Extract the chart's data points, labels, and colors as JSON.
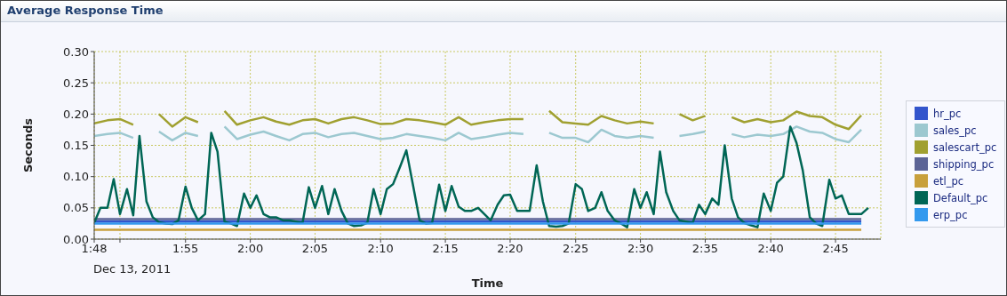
{
  "chart_data": {
    "type": "line",
    "title": "Average Response Time",
    "xlabel": "Time",
    "ylabel": "Seconds",
    "annotations": [
      "Dec 13, 2011"
    ],
    "x": [
      1.8,
      1.817,
      1.833,
      1.85,
      1.867,
      1.883,
      1.9,
      1.917,
      1.933,
      1.95,
      1.967,
      1.983,
      2,
      2.017,
      2.033,
      2.05,
      2.067,
      2.083,
      2.1,
      2.117,
      2.133,
      2.15,
      2.167,
      2.183,
      2.2,
      2.217,
      2.233,
      2.25,
      2.267,
      2.283,
      2.3,
      2.317,
      2.333,
      2.35,
      2.367,
      2.383,
      2.4,
      2.417,
      2.433,
      2.45,
      2.467,
      2.483,
      2.5,
      2.517,
      2.533,
      2.55,
      2.567,
      2.583,
      2.6,
      2.617,
      2.633,
      2.65,
      2.667,
      2.683,
      2.7,
      2.717,
      2.733,
      2.75,
      2.767,
      2.783
    ],
    "series": [
      {
        "name": "hr_pc",
        "color": "#3355cc",
        "values": [
          0.028,
          0.028,
          0.028,
          0.028,
          0.028,
          0.028,
          0.028,
          0.028,
          0.028,
          0.028,
          0.028,
          0.028,
          0.028,
          0.028,
          0.028,
          0.028,
          0.028,
          0.028,
          0.028,
          0.028,
          0.028,
          0.028,
          0.028,
          0.028,
          0.028,
          0.028,
          0.028,
          0.028,
          0.028,
          0.028,
          0.028,
          0.028,
          0.028,
          0.028,
          0.028,
          0.028,
          0.028,
          0.028,
          0.028,
          0.028,
          0.028,
          0.028,
          0.028,
          0.028,
          0.028,
          0.028,
          0.028,
          0.028,
          0.028,
          0.028,
          0.028,
          0.028,
          0.028,
          0.028,
          0.028,
          0.028,
          0.028,
          0.028,
          0.028,
          0.028
        ]
      },
      {
        "name": "sales_pc",
        "color": "#9cc8d0",
        "values": [
          0.165,
          0.168,
          0.17,
          0.162,
          null,
          0.172,
          0.158,
          0.17,
          0.165,
          null,
          0.18,
          0.16,
          0.167,
          0.172,
          0.165,
          0.158,
          0.168,
          0.17,
          0.163,
          0.168,
          0.17,
          0.165,
          0.16,
          0.162,
          0.168,
          0.165,
          0.162,
          0.158,
          0.17,
          0.16,
          0.163,
          0.167,
          0.17,
          0.168,
          null,
          0.17,
          0.162,
          0.162,
          0.155,
          0.175,
          0.165,
          0.162,
          0.165,
          0.162,
          null,
          0.165,
          0.168,
          0.172,
          null,
          0.168,
          0.163,
          0.167,
          0.165,
          0.168,
          0.18,
          0.172,
          0.17,
          0.16,
          0.155,
          0.175
        ]
      },
      {
        "name": "salescart_pc",
        "color": "#a0a030",
        "values": [
          0.185,
          0.19,
          0.192,
          0.183,
          null,
          0.2,
          0.18,
          0.195,
          0.187,
          null,
          0.205,
          0.183,
          0.19,
          0.195,
          0.188,
          0.183,
          0.19,
          0.192,
          0.185,
          0.192,
          0.195,
          0.19,
          0.184,
          0.185,
          0.192,
          0.19,
          0.187,
          0.183,
          0.195,
          0.183,
          0.187,
          0.19,
          0.192,
          0.192,
          null,
          0.205,
          0.187,
          0.185,
          0.183,
          0.197,
          0.19,
          0.185,
          0.188,
          0.185,
          null,
          0.2,
          0.19,
          0.197,
          null,
          0.195,
          0.187,
          0.192,
          0.187,
          0.19,
          0.204,
          0.197,
          0.195,
          0.183,
          0.176,
          0.198
        ]
      },
      {
        "name": "shipping_pc",
        "color": "#5c6496",
        "values": [
          0.032,
          0.032,
          0.032,
          0.032,
          0.032,
          0.032,
          0.032,
          0.032,
          0.032,
          0.032,
          0.032,
          0.032,
          0.032,
          0.032,
          0.032,
          0.032,
          0.032,
          0.032,
          0.032,
          0.032,
          0.032,
          0.032,
          0.032,
          0.032,
          0.032,
          0.032,
          0.032,
          0.032,
          0.032,
          0.032,
          0.032,
          0.032,
          0.032,
          0.032,
          0.032,
          0.032,
          0.032,
          0.032,
          0.032,
          0.032,
          0.032,
          0.032,
          0.032,
          0.032,
          0.032,
          0.032,
          0.032,
          0.032,
          0.032,
          0.032,
          0.032,
          0.032,
          0.032,
          0.032,
          0.032,
          0.032,
          0.032,
          0.032,
          0.032,
          0.032
        ]
      },
      {
        "name": "etl_pc",
        "color": "#c8a03c",
        "values": [
          0.015,
          0.015,
          0.015,
          0.015,
          0.015,
          0.015,
          0.015,
          0.015,
          0.015,
          0.015,
          0.015,
          0.015,
          0.015,
          0.015,
          0.015,
          0.015,
          0.015,
          0.015,
          0.015,
          0.015,
          0.015,
          0.015,
          0.015,
          0.015,
          0.015,
          0.015,
          0.015,
          0.015,
          0.015,
          0.015,
          0.015,
          0.015,
          0.015,
          0.015,
          0.015,
          0.015,
          0.015,
          0.015,
          0.015,
          0.015,
          0.015,
          0.015,
          0.015,
          0.015,
          0.015,
          0.015,
          0.015,
          0.015,
          0.015,
          0.015,
          0.015,
          0.015,
          0.015,
          0.015,
          0.015,
          0.015,
          0.015,
          0.015,
          0.015,
          0.015
        ]
      },
      {
        "name": "Default_pc",
        "color": "#006655",
        "x": [
          1.8,
          1.808,
          1.817,
          1.825,
          1.833,
          1.842,
          1.85,
          1.858,
          1.867,
          1.875,
          1.883,
          1.892,
          1.9,
          1.908,
          1.917,
          1.925,
          1.933,
          1.942,
          1.95,
          1.958,
          1.967,
          1.975,
          1.983,
          1.992,
          2,
          2.008,
          2.017,
          2.025,
          2.033,
          2.042,
          2.05,
          2.058,
          2.067,
          2.075,
          2.083,
          2.092,
          2.1,
          2.108,
          2.117,
          2.125,
          2.133,
          2.142,
          2.15,
          2.158,
          2.167,
          2.175,
          2.183,
          2.192,
          2.2,
          2.208,
          2.217,
          2.225,
          2.233,
          2.242,
          2.25,
          2.258,
          2.267,
          2.275,
          2.283,
          2.292,
          2.3,
          2.308,
          2.317,
          2.325,
          2.333,
          2.342,
          2.35,
          2.358,
          2.367,
          2.375,
          2.383,
          2.392,
          2.4,
          2.408,
          2.417,
          2.425,
          2.433,
          2.442,
          2.45,
          2.458,
          2.467,
          2.475,
          2.483,
          2.492,
          2.5,
          2.508,
          2.517,
          2.525,
          2.533,
          2.542,
          2.55,
          2.558,
          2.567,
          2.575,
          2.583,
          2.592,
          2.6,
          2.608,
          2.617,
          2.625,
          2.633,
          2.642,
          2.65,
          2.658,
          2.667,
          2.675,
          2.683,
          2.692,
          2.7,
          2.708,
          2.717,
          2.725,
          2.733,
          2.742,
          2.75,
          2.758,
          2.767,
          2.775,
          2.783,
          2.792
        ],
        "values": [
          0.026,
          0.05,
          0.05,
          0.096,
          0.04,
          0.08,
          0.038,
          0.165,
          0.06,
          0.035,
          0.027,
          0.025,
          0.024,
          0.03,
          0.084,
          0.05,
          0.03,
          0.04,
          0.17,
          0.14,
          0.028,
          0.025,
          0.021,
          0.073,
          0.05,
          0.07,
          0.04,
          0.035,
          0.035,
          0.03,
          0.03,
          0.028,
          0.026,
          0.083,
          0.05,
          0.085,
          0.04,
          0.08,
          0.045,
          0.025,
          0.021,
          0.022,
          0.026,
          0.08,
          0.04,
          0.08,
          0.088,
          0.116,
          0.142,
          0.09,
          0.03,
          0.025,
          0.026,
          0.087,
          0.045,
          0.085,
          0.052,
          0.045,
          0.045,
          0.05,
          0.04,
          0.03,
          0.055,
          0.07,
          0.071,
          0.045,
          0.045,
          0.045,
          0.118,
          0.06,
          0.021,
          0.02,
          0.021,
          0.025,
          0.088,
          0.08,
          0.045,
          0.05,
          0.075,
          0.045,
          0.03,
          0.025,
          0.019,
          0.08,
          0.05,
          0.075,
          0.04,
          0.14,
          0.075,
          0.045,
          0.03,
          0.028,
          0.026,
          0.055,
          0.04,
          0.065,
          0.055,
          0.15,
          0.065,
          0.035,
          0.026,
          0.022,
          0.019,
          0.073,
          0.045,
          0.09,
          0.1,
          0.18,
          0.154,
          0.11,
          0.035,
          0.025,
          0.021,
          0.095,
          0.065,
          0.07,
          0.04,
          0.04,
          0.04,
          0.05
        ]
      },
      {
        "name": "erp_pc",
        "color": "#3399ee",
        "values": [
          0.025,
          0.025,
          0.025,
          0.025,
          0.025,
          0.025,
          0.025,
          0.025,
          0.025,
          0.025,
          0.025,
          0.025,
          0.025,
          0.025,
          0.025,
          0.025,
          0.025,
          0.025,
          0.025,
          0.025,
          0.025,
          0.025,
          0.025,
          0.025,
          0.025,
          0.025,
          0.025,
          0.025,
          0.025,
          0.025,
          0.025,
          0.025,
          0.025,
          0.025,
          0.025,
          0.025,
          0.025,
          0.025,
          0.025,
          0.025,
          0.025,
          0.025,
          0.025,
          0.025,
          0.025,
          0.025,
          0.025,
          0.025,
          0.025,
          0.025,
          0.025,
          0.025,
          0.025,
          0.025,
          0.025,
          0.025,
          0.025,
          0.025,
          0.025,
          0.025
        ]
      }
    ],
    "xlim": [
      1.8,
      2.808
    ],
    "xticks": [
      {
        "value": 1.8,
        "label": "1:48"
      },
      {
        "value": 1.833,
        "label": null
      },
      {
        "value": 1.917,
        "label": "1:55"
      },
      {
        "value": 2,
        "label": "2:00"
      },
      {
        "value": 2.083,
        "label": "2:05"
      },
      {
        "value": 2.167,
        "label": "2:10"
      },
      {
        "value": 2.25,
        "label": "2:15"
      },
      {
        "value": 2.333,
        "label": "2:20"
      },
      {
        "value": 2.417,
        "label": "2:25"
      },
      {
        "value": 2.5,
        "label": "2:30"
      },
      {
        "value": 2.583,
        "label": "2:35"
      },
      {
        "value": 2.667,
        "label": "2:40"
      },
      {
        "value": 2.75,
        "label": "2:45"
      }
    ],
    "ylim": [
      0,
      0.3
    ],
    "yticks": [
      {
        "value": 0,
        "label": "0.00"
      },
      {
        "value": 0.05,
        "label": "0.05"
      },
      {
        "value": 0.1,
        "label": "0.10"
      },
      {
        "value": 0.15,
        "label": "0.15"
      },
      {
        "value": 0.2,
        "label": "0.20"
      },
      {
        "value": 0.25,
        "label": "0.25"
      },
      {
        "value": 0.3,
        "label": "0.30"
      }
    ],
    "grid": true,
    "legend": "right",
    "marker": "none"
  }
}
